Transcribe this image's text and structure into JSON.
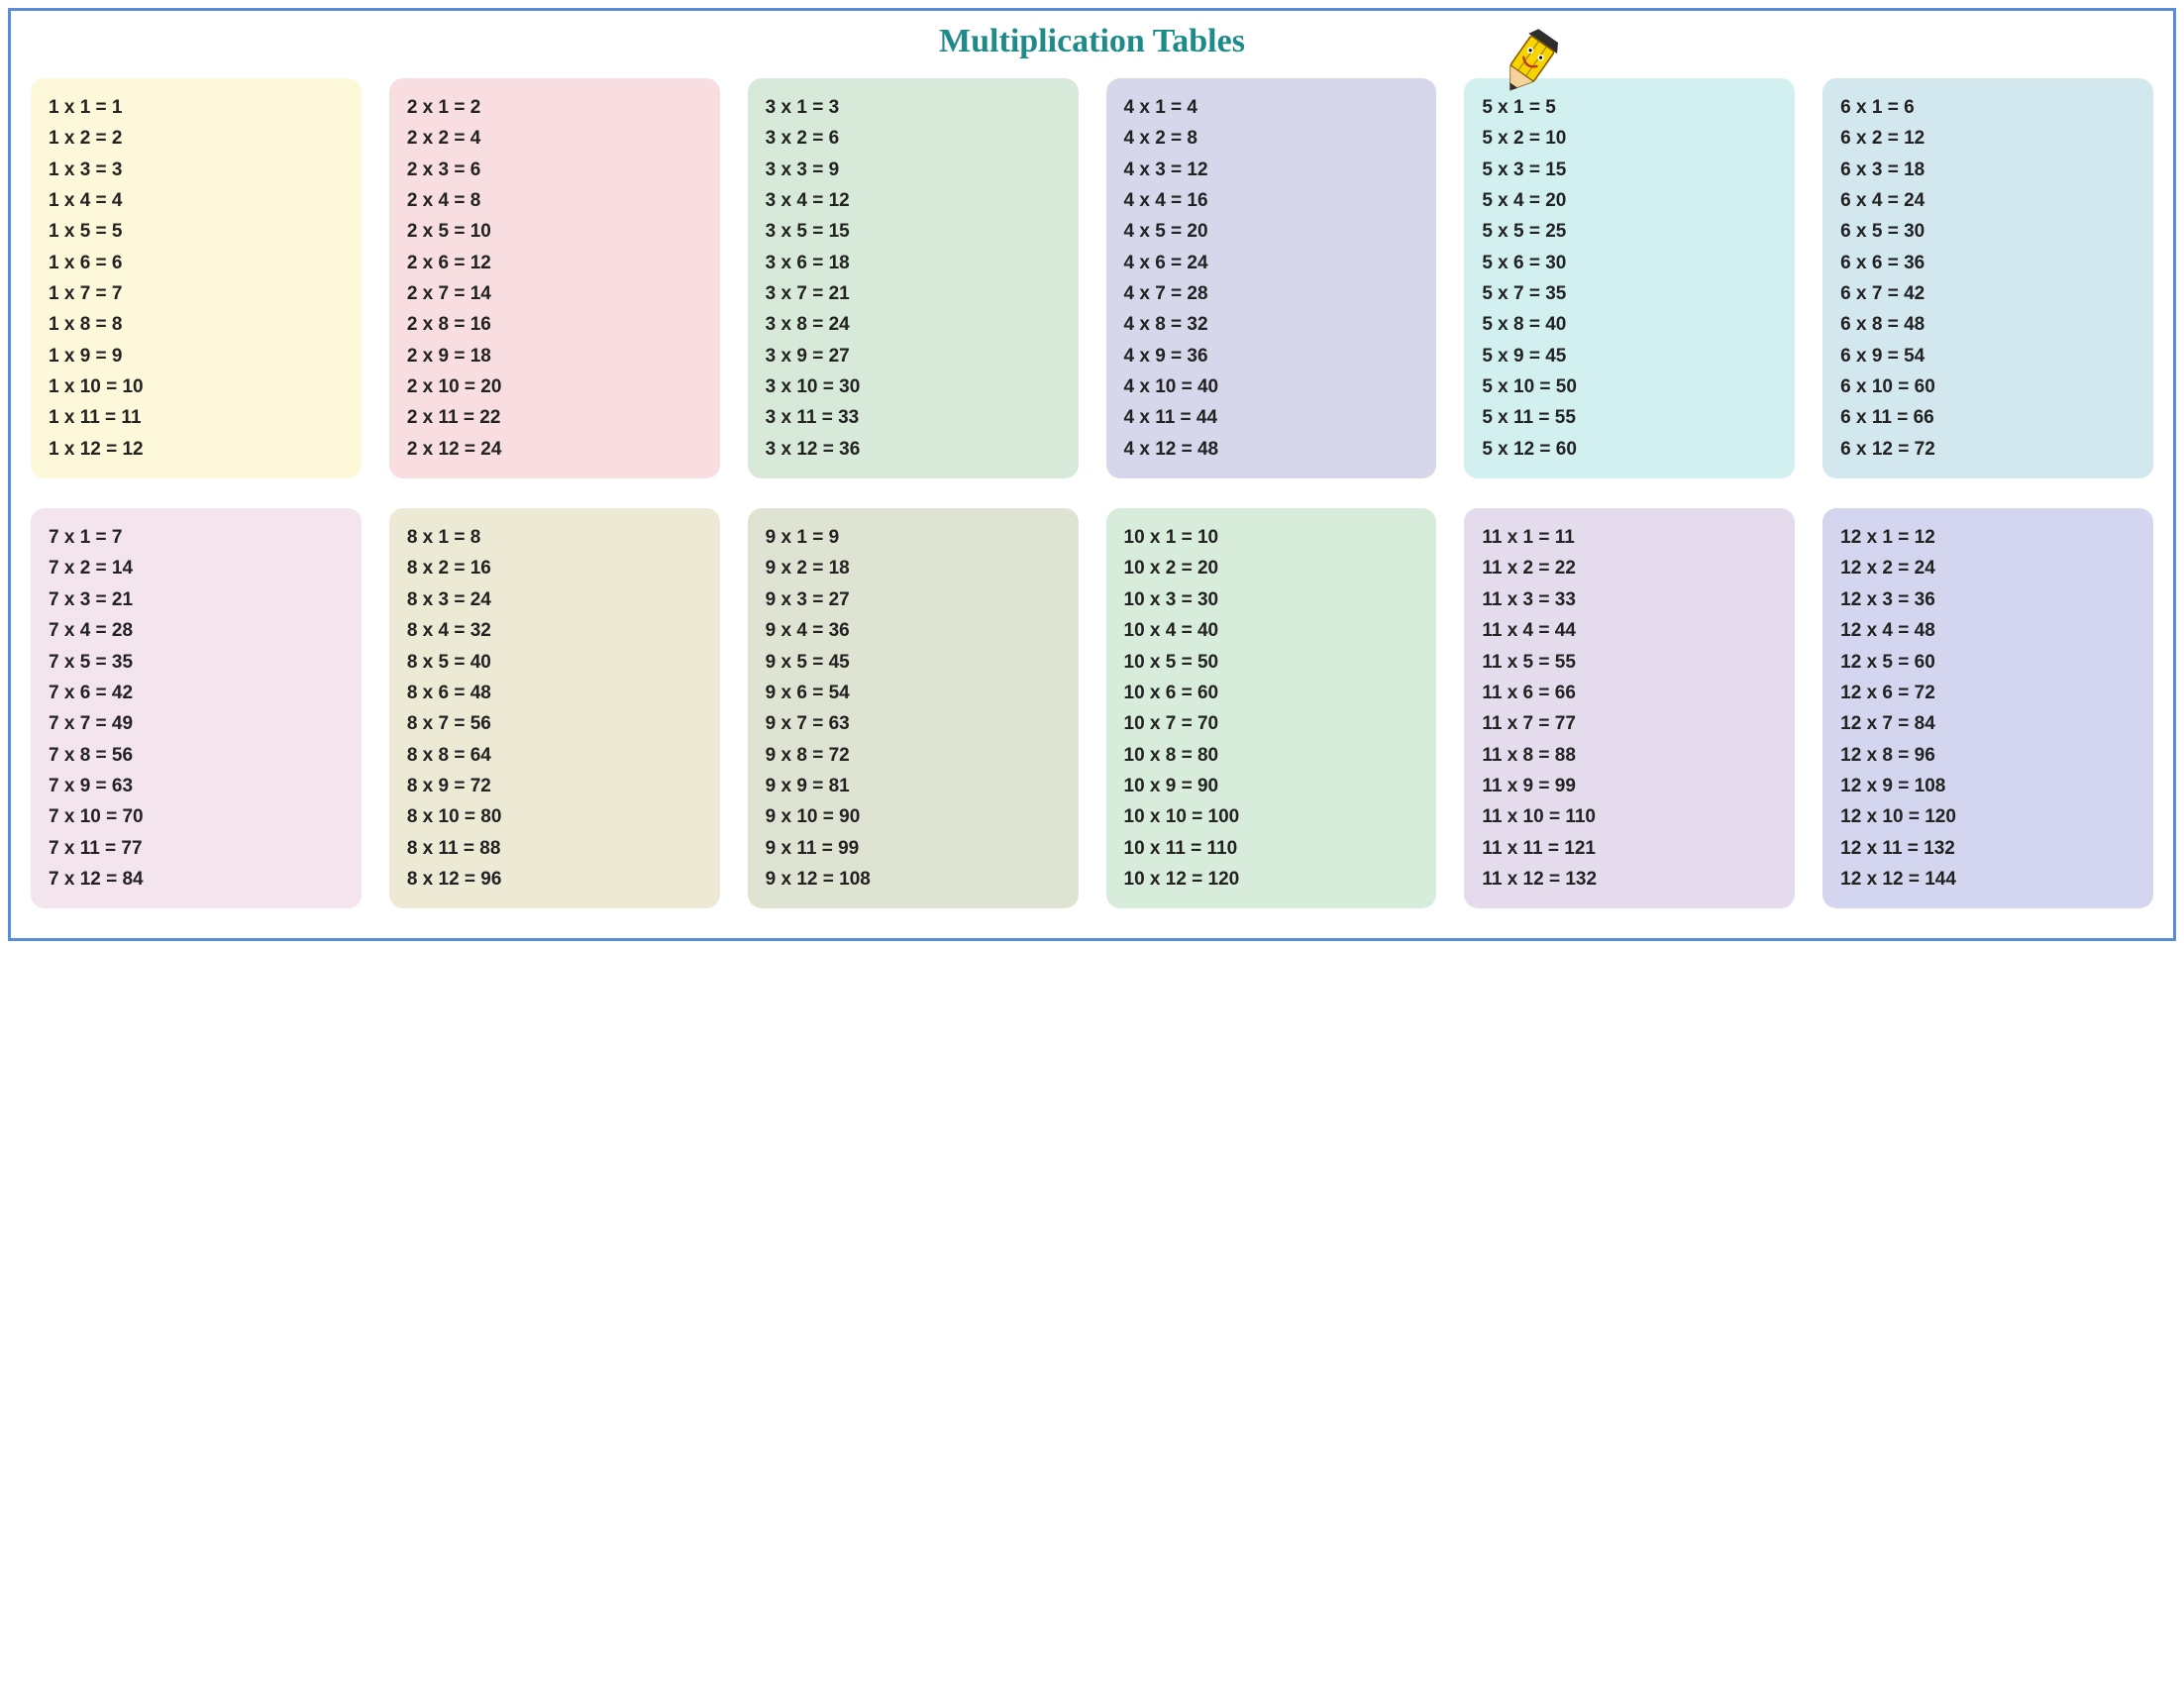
{
  "title": "Multiplication Tables",
  "title_color": "#1f8a8a",
  "border_color": "#5a8cd6",
  "text_color": "#222222",
  "font_size_row": 19,
  "card_radius": 14,
  "tables": [
    {
      "n": 1,
      "bg": "#fcf8d9"
    },
    {
      "n": 2,
      "bg": "#f8dde1"
    },
    {
      "n": 3,
      "bg": "#d7e9d9"
    },
    {
      "n": 4,
      "bg": "#d6d7ea"
    },
    {
      "n": 5,
      "bg": "#d2f0f0"
    },
    {
      "n": 6,
      "bg": "#d3e7ef"
    },
    {
      "n": 7,
      "bg": "#f3e4ed"
    },
    {
      "n": 8,
      "bg": "#ece9d5"
    },
    {
      "n": 9,
      "bg": "#dfe3d2"
    },
    {
      "n": 10,
      "bg": "#d8ecdb"
    },
    {
      "n": 11,
      "bg": "#e4dcec"
    },
    {
      "n": 12,
      "bg": "#d4d6ef"
    }
  ],
  "multipliers": [
    1,
    2,
    3,
    4,
    5,
    6,
    7,
    8,
    9,
    10,
    11,
    12
  ],
  "pencil": {
    "body_fill": "#f6d400",
    "body_stroke": "#8a5a00",
    "cap_fill": "#2f2f2f",
    "tip_fill": "#f4d39a",
    "lead_fill": "#2f2f2f"
  }
}
